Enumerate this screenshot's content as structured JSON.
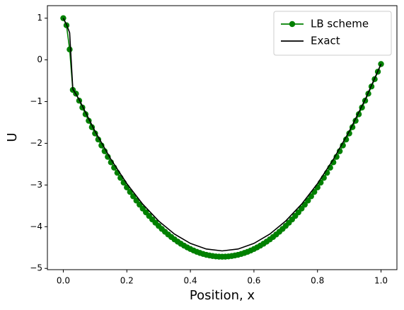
{
  "chart_data": {
    "type": "line",
    "xlabel": "Position, x",
    "ylabel": "U",
    "xlim": [
      -0.05,
      1.05
    ],
    "ylim": [
      -5.03,
      1.3
    ],
    "xticks": [
      {
        "value": 0,
        "label": "0.0"
      },
      {
        "value": 0.2,
        "label": "0.2"
      },
      {
        "value": 0.4,
        "label": "0.4"
      },
      {
        "value": 0.6,
        "label": "0.6"
      },
      {
        "value": 0.8,
        "label": "0.8"
      },
      {
        "value": 1,
        "label": "1.0"
      }
    ],
    "yticks": [
      {
        "value": -5,
        "label": "−5"
      },
      {
        "value": -4,
        "label": "−4"
      },
      {
        "value": -3,
        "label": "−3"
      },
      {
        "value": -2,
        "label": "−2"
      },
      {
        "value": -1,
        "label": "−1"
      },
      0,
      1
    ],
    "grid": false,
    "legend": "upper right",
    "series": [
      {
        "name": "LB scheme",
        "color": "#008000",
        "marker": true,
        "x": [
          0,
          0.01,
          0.02,
          0.03,
          0.04,
          0.05,
          0.06,
          0.07,
          0.08,
          0.09,
          0.1,
          0.11,
          0.12,
          0.13,
          0.14,
          0.15,
          0.16,
          0.17,
          0.18,
          0.19,
          0.2,
          0.21,
          0.22,
          0.23,
          0.24,
          0.25,
          0.26,
          0.27,
          0.28,
          0.29,
          0.3,
          0.31,
          0.32,
          0.33,
          0.34,
          0.35,
          0.36,
          0.37,
          0.38,
          0.39,
          0.4,
          0.41,
          0.42,
          0.43,
          0.44,
          0.45,
          0.46,
          0.47,
          0.48,
          0.49,
          0.5,
          0.51,
          0.52,
          0.53,
          0.54,
          0.55,
          0.56,
          0.57,
          0.58,
          0.59,
          0.6,
          0.61,
          0.62,
          0.63,
          0.64,
          0.65,
          0.66,
          0.67,
          0.68,
          0.69,
          0.7,
          0.71,
          0.72,
          0.73,
          0.74,
          0.75,
          0.76,
          0.77,
          0.78,
          0.79,
          0.8,
          0.81,
          0.82,
          0.83,
          0.84,
          0.85,
          0.86,
          0.87,
          0.88,
          0.89,
          0.9,
          0.91,
          0.92,
          0.93,
          0.94,
          0.95,
          0.96,
          0.97,
          0.98,
          0.99,
          1
        ],
        "values": [
          1,
          0.83,
          0.25,
          -0.72,
          -0.81,
          -0.978,
          -1.142,
          -1.303,
          -1.46,
          -1.614,
          -1.763,
          -1.909,
          -2.052,
          -2.19,
          -2.325,
          -2.456,
          -2.584,
          -2.708,
          -2.828,
          -2.944,
          -3.057,
          -3.166,
          -3.271,
          -3.373,
          -3.471,
          -3.565,
          -3.656,
          -3.742,
          -3.826,
          -3.905,
          -3.981,
          -4.053,
          -4.121,
          -4.186,
          -4.247,
          -4.304,
          -4.358,
          -4.408,
          -4.454,
          -4.496,
          -4.535,
          -4.57,
          -4.602,
          -4.629,
          -4.653,
          -4.674,
          -4.69,
          -4.703,
          -4.713,
          -4.718,
          -4.72,
          -4.718,
          -4.713,
          -4.703,
          -4.69,
          -4.674,
          -4.653,
          -4.629,
          -4.602,
          -4.57,
          -4.535,
          -4.496,
          -4.454,
          -4.408,
          -4.358,
          -4.304,
          -4.247,
          -4.186,
          -4.121,
          -4.053,
          -3.981,
          -3.905,
          -3.826,
          -3.742,
          -3.656,
          -3.565,
          -3.471,
          -3.373,
          -3.271,
          -3.166,
          -3.057,
          -2.944,
          -2.828,
          -2.708,
          -2.584,
          -2.456,
          -2.325,
          -2.19,
          -2.052,
          -1.909,
          -1.763,
          -1.614,
          -1.46,
          -1.303,
          -1.142,
          -0.978,
          -0.81,
          -0.638,
          -0.462,
          -0.283,
          -0.1
        ]
      },
      {
        "name": "Exact",
        "color": "#000000",
        "marker": false,
        "x": [
          0,
          0.01,
          0.02,
          0.03,
          0.05,
          0.1,
          0.15,
          0.2,
          0.25,
          0.3,
          0.35,
          0.4,
          0.45,
          0.5,
          0.55,
          0.6,
          0.65,
          0.7,
          0.75,
          0.8,
          0.85,
          0.9,
          0.95,
          1
        ],
        "values": [
          1,
          0.85,
          0.65,
          -0.7,
          -0.951,
          -1.713,
          -2.385,
          -2.967,
          -3.46,
          -3.863,
          -4.177,
          -4.401,
          -4.535,
          -4.58,
          -4.535,
          -4.401,
          -4.177,
          -3.863,
          -3.46,
          -2.967,
          -2.385,
          -1.713,
          -0.951,
          -0.1
        ]
      }
    ]
  }
}
